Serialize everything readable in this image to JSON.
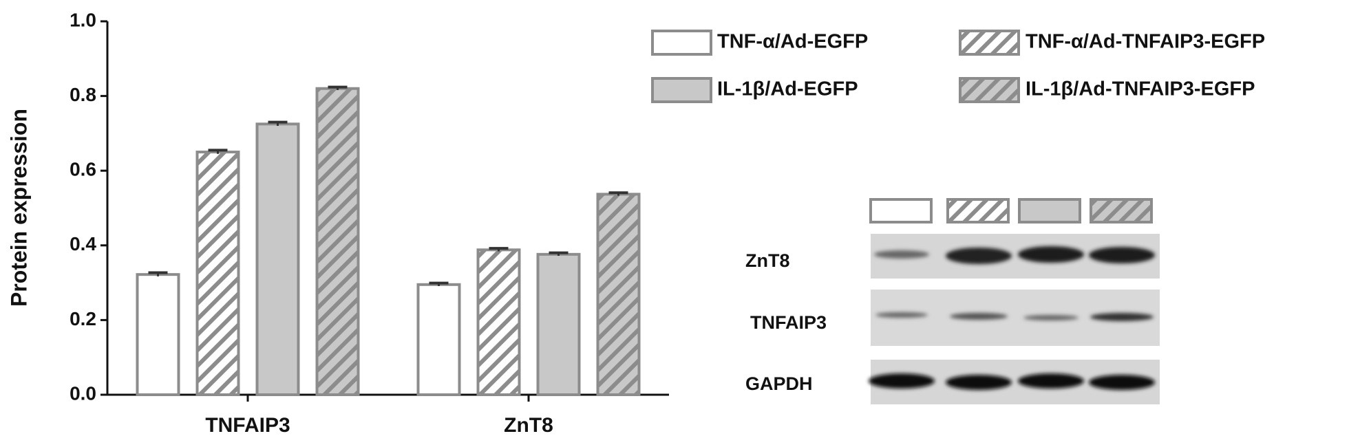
{
  "chart_data": {
    "type": "bar",
    "y_label": "Protein expression",
    "categories": [
      "TNFAIP3",
      "ZnT8"
    ],
    "series": [
      {
        "name": "TNF-α/Ad-EGFP",
        "color": "#ffffff",
        "hatch": false,
        "values": [
          0.322,
          0.295
        ],
        "errors": [
          0.005,
          0.004
        ]
      },
      {
        "name": "TNF-α/Ad-TNFAIP3-EGFP",
        "color": "#ffffff",
        "hatch": true,
        "values": [
          0.65,
          0.388
        ],
        "errors": [
          0.005,
          0.004
        ]
      },
      {
        "name": "IL-1β/Ad-EGFP",
        "color": "#c8c8c8",
        "hatch": false,
        "values": [
          0.725,
          0.376
        ],
        "errors": [
          0.005,
          0.004
        ]
      },
      {
        "name": "IL-1β/Ad-TNFAIP3-EGFP",
        "color": "#c8c8c8",
        "hatch": true,
        "values": [
          0.82,
          0.537
        ],
        "errors": [
          0.004,
          0.004
        ]
      }
    ],
    "edge_color": "#8c8c8c",
    "ylim": [
      0,
      1
    ],
    "yticks": [
      {
        "value": 0,
        "label": "0.0"
      },
      0.2,
      0.4,
      0.6,
      0.8,
      {
        "value": 1,
        "label": "1.0"
      }
    ]
  },
  "blot": {
    "rows": [
      "ZnT8",
      "TNFAIP3",
      "GAPDH"
    ]
  }
}
